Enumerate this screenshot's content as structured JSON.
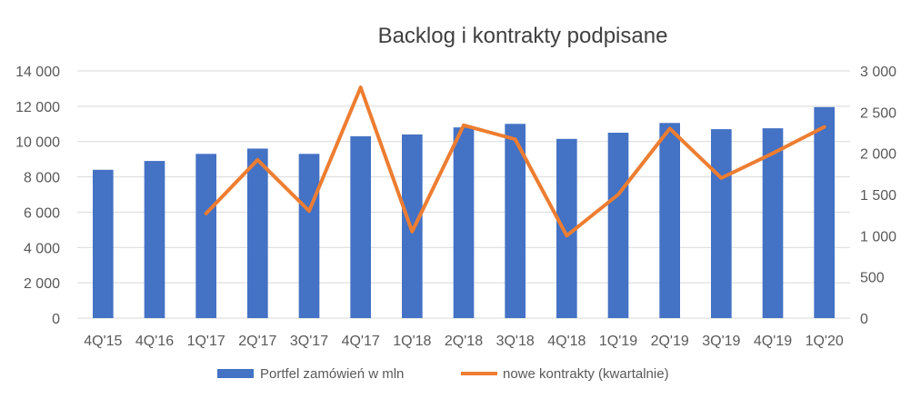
{
  "chart_data": {
    "type": "bar+line",
    "title": "Backlog i kontrakty podpisane",
    "categories": [
      "4Q'15",
      "4Q'16",
      "1Q'17",
      "2Q'17",
      "3Q'17",
      "4Q'17",
      "1Q'18",
      "2Q'18",
      "3Q'18",
      "4Q'18",
      "1Q'19",
      "2Q'19",
      "3Q'19",
      "4Q'19",
      "1Q'20"
    ],
    "y_left": {
      "ylim": [
        0,
        14000
      ],
      "ticks": [
        "0",
        "2 000",
        "4 000",
        "6 000",
        "8 000",
        "10 000",
        "12 000",
        "14 000"
      ],
      "tick_values": [
        0,
        2000,
        4000,
        6000,
        8000,
        10000,
        12000,
        14000
      ]
    },
    "y_right": {
      "ylim": [
        0,
        3000
      ],
      "ticks": [
        "0",
        "500",
        "1 000",
        "1 500",
        "2 000",
        "2 500",
        "3 000"
      ],
      "tick_values": [
        0,
        500,
        1000,
        1500,
        2000,
        2500,
        3000
      ]
    },
    "series": [
      {
        "name": "Portfel zamówień w mln",
        "kind": "bar",
        "axis": "left",
        "color": "#4472C4",
        "values": [
          8400,
          8900,
          9300,
          9600,
          9300,
          10300,
          10400,
          10800,
          11000,
          10150,
          10500,
          11050,
          10700,
          10750,
          11950
        ]
      },
      {
        "name": "nowe kontrakty (kwartalnie)",
        "kind": "line",
        "axis": "right",
        "color": "#ED7D31",
        "values": [
          null,
          null,
          1270,
          1920,
          1300,
          2800,
          1050,
          2340,
          2170,
          1000,
          1500,
          2300,
          1700,
          2000,
          2320
        ]
      }
    ],
    "legend_position": "bottom",
    "grid": true,
    "gridline_color": "#d9d9d9"
  }
}
